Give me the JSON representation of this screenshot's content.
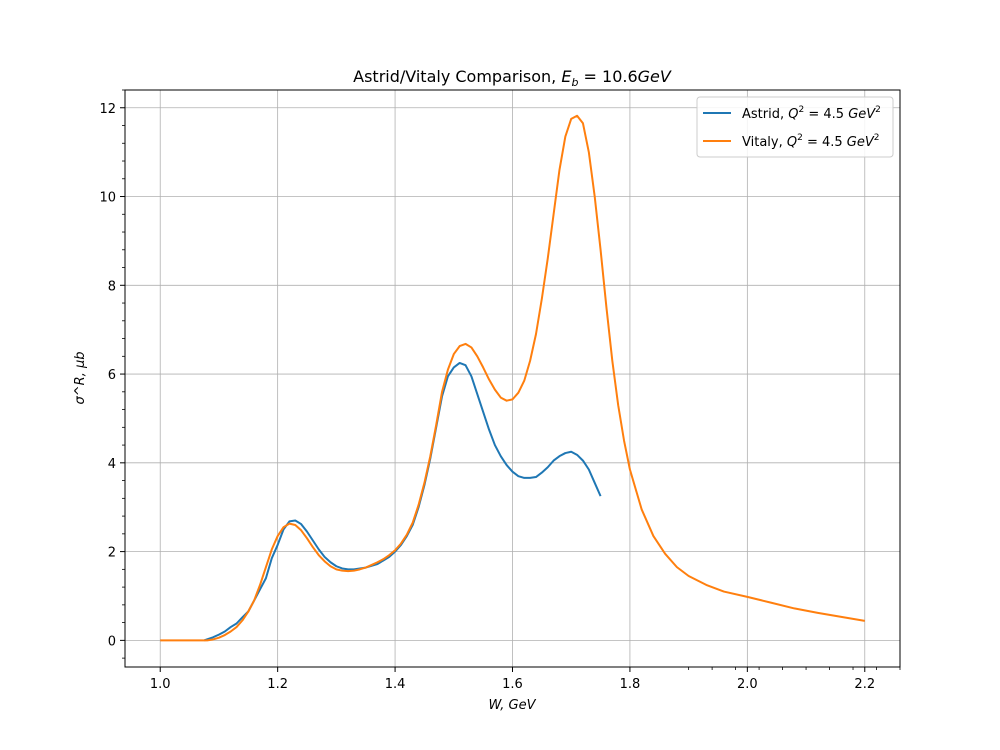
{
  "chart_data": {
    "type": "line",
    "title": "Astrid/Vitaly Comparison, E_b = 10.6 GeV",
    "title_parts": {
      "prefix": "Astrid/Vitaly Comparison, ",
      "E": "E",
      "b": "b",
      "eq": " = 10.6",
      "unit": "GeV"
    },
    "xlabel": "W, GeV",
    "ylabel": "σ^R, μb",
    "xlim": [
      0.94,
      2.26
    ],
    "ylim": [
      -0.6,
      12.4
    ],
    "x_ticks": [
      1.0,
      1.2,
      1.4,
      1.6,
      1.8,
      2.0,
      2.2
    ],
    "x_tick_labels": [
      "1.0",
      "1.2",
      "1.4",
      "1.6",
      "1.8",
      "2.0",
      "2.2"
    ],
    "y_ticks": [
      0,
      2,
      4,
      6,
      8,
      10,
      12
    ],
    "y_tick_labels": [
      "0",
      "2",
      "4",
      "6",
      "8",
      "10",
      "12"
    ],
    "grid": true,
    "legend_position": "top-right",
    "series": [
      {
        "name": "Astrid, Q² = 4.5 GeV²",
        "legend": {
          "prefix": "Astrid, ",
          "Q": "Q",
          "sup": "2",
          "mid": " = 4.5 ",
          "unit": "GeV",
          "usup": "2"
        },
        "color": "#1f77b4",
        "points": [
          [
            1.075,
            0.0
          ],
          [
            1.09,
            0.07
          ],
          [
            1.1,
            0.13
          ],
          [
            1.11,
            0.2
          ],
          [
            1.12,
            0.3
          ],
          [
            1.13,
            0.38
          ],
          [
            1.14,
            0.52
          ],
          [
            1.15,
            0.65
          ],
          [
            1.16,
            0.9
          ],
          [
            1.17,
            1.15
          ],
          [
            1.18,
            1.4
          ],
          [
            1.19,
            1.85
          ],
          [
            1.2,
            2.15
          ],
          [
            1.21,
            2.5
          ],
          [
            1.22,
            2.68
          ],
          [
            1.23,
            2.7
          ],
          [
            1.24,
            2.62
          ],
          [
            1.25,
            2.45
          ],
          [
            1.26,
            2.25
          ],
          [
            1.27,
            2.05
          ],
          [
            1.28,
            1.88
          ],
          [
            1.29,
            1.76
          ],
          [
            1.3,
            1.67
          ],
          [
            1.31,
            1.62
          ],
          [
            1.32,
            1.6
          ],
          [
            1.33,
            1.6
          ],
          [
            1.34,
            1.62
          ],
          [
            1.35,
            1.64
          ],
          [
            1.36,
            1.68
          ],
          [
            1.37,
            1.72
          ],
          [
            1.38,
            1.8
          ],
          [
            1.39,
            1.88
          ],
          [
            1.4,
            2.0
          ],
          [
            1.41,
            2.15
          ],
          [
            1.42,
            2.35
          ],
          [
            1.43,
            2.6
          ],
          [
            1.44,
            3.0
          ],
          [
            1.45,
            3.5
          ],
          [
            1.46,
            4.1
          ],
          [
            1.47,
            4.8
          ],
          [
            1.48,
            5.5
          ],
          [
            1.49,
            5.95
          ],
          [
            1.5,
            6.15
          ],
          [
            1.51,
            6.25
          ],
          [
            1.52,
            6.2
          ],
          [
            1.53,
            5.95
          ],
          [
            1.54,
            5.55
          ],
          [
            1.55,
            5.15
          ],
          [
            1.56,
            4.75
          ],
          [
            1.57,
            4.4
          ],
          [
            1.58,
            4.15
          ],
          [
            1.59,
            3.95
          ],
          [
            1.6,
            3.8
          ],
          [
            1.61,
            3.7
          ],
          [
            1.62,
            3.66
          ],
          [
            1.63,
            3.66
          ],
          [
            1.64,
            3.68
          ],
          [
            1.65,
            3.78
          ],
          [
            1.66,
            3.9
          ],
          [
            1.67,
            4.05
          ],
          [
            1.68,
            4.15
          ],
          [
            1.69,
            4.22
          ],
          [
            1.7,
            4.25
          ],
          [
            1.71,
            4.18
          ],
          [
            1.72,
            4.05
          ],
          [
            1.73,
            3.85
          ],
          [
            1.74,
            3.55
          ],
          [
            1.75,
            3.25
          ]
        ]
      },
      {
        "name": "Vitaly, Q² = 4.5 GeV²",
        "legend": {
          "prefix": "Vitaly, ",
          "Q": "Q",
          "sup": "2",
          "mid": " = 4.5 ",
          "unit": "GeV",
          "usup": "2"
        },
        "color": "#ff7f0e",
        "points": [
          [
            1.0,
            0.0
          ],
          [
            1.02,
            0.0
          ],
          [
            1.04,
            0.0
          ],
          [
            1.06,
            0.0
          ],
          [
            1.08,
            0.0
          ],
          [
            1.09,
            0.02
          ],
          [
            1.1,
            0.06
          ],
          [
            1.11,
            0.12
          ],
          [
            1.12,
            0.2
          ],
          [
            1.13,
            0.3
          ],
          [
            1.14,
            0.45
          ],
          [
            1.15,
            0.65
          ],
          [
            1.16,
            0.9
          ],
          [
            1.17,
            1.25
          ],
          [
            1.18,
            1.65
          ],
          [
            1.19,
            2.05
          ],
          [
            1.2,
            2.35
          ],
          [
            1.21,
            2.55
          ],
          [
            1.22,
            2.63
          ],
          [
            1.23,
            2.6
          ],
          [
            1.24,
            2.48
          ],
          [
            1.25,
            2.3
          ],
          [
            1.26,
            2.1
          ],
          [
            1.27,
            1.92
          ],
          [
            1.28,
            1.78
          ],
          [
            1.29,
            1.67
          ],
          [
            1.3,
            1.6
          ],
          [
            1.31,
            1.57
          ],
          [
            1.32,
            1.56
          ],
          [
            1.33,
            1.57
          ],
          [
            1.34,
            1.6
          ],
          [
            1.35,
            1.64
          ],
          [
            1.36,
            1.7
          ],
          [
            1.37,
            1.76
          ],
          [
            1.38,
            1.83
          ],
          [
            1.39,
            1.92
          ],
          [
            1.4,
            2.03
          ],
          [
            1.41,
            2.18
          ],
          [
            1.42,
            2.38
          ],
          [
            1.43,
            2.65
          ],
          [
            1.44,
            3.05
          ],
          [
            1.45,
            3.55
          ],
          [
            1.46,
            4.15
          ],
          [
            1.47,
            4.85
          ],
          [
            1.48,
            5.6
          ],
          [
            1.49,
            6.1
          ],
          [
            1.5,
            6.45
          ],
          [
            1.51,
            6.63
          ],
          [
            1.52,
            6.68
          ],
          [
            1.53,
            6.6
          ],
          [
            1.54,
            6.4
          ],
          [
            1.55,
            6.15
          ],
          [
            1.56,
            5.88
          ],
          [
            1.57,
            5.65
          ],
          [
            1.58,
            5.47
          ],
          [
            1.59,
            5.4
          ],
          [
            1.6,
            5.43
          ],
          [
            1.61,
            5.58
          ],
          [
            1.62,
            5.85
          ],
          [
            1.63,
            6.3
          ],
          [
            1.64,
            6.9
          ],
          [
            1.65,
            7.7
          ],
          [
            1.66,
            8.6
          ],
          [
            1.67,
            9.6
          ],
          [
            1.68,
            10.6
          ],
          [
            1.69,
            11.35
          ],
          [
            1.7,
            11.75
          ],
          [
            1.71,
            11.82
          ],
          [
            1.72,
            11.65
          ],
          [
            1.73,
            11.0
          ],
          [
            1.74,
            10.0
          ],
          [
            1.75,
            8.8
          ],
          [
            1.76,
            7.5
          ],
          [
            1.77,
            6.3
          ],
          [
            1.78,
            5.3
          ],
          [
            1.79,
            4.5
          ],
          [
            1.8,
            3.85
          ],
          [
            1.82,
            2.95
          ],
          [
            1.84,
            2.35
          ],
          [
            1.86,
            1.95
          ],
          [
            1.88,
            1.65
          ],
          [
            1.9,
            1.45
          ],
          [
            1.93,
            1.25
          ],
          [
            1.96,
            1.1
          ],
          [
            2.0,
            0.98
          ],
          [
            2.04,
            0.85
          ],
          [
            2.08,
            0.72
          ],
          [
            2.12,
            0.62
          ],
          [
            2.16,
            0.53
          ],
          [
            2.2,
            0.44
          ]
        ]
      }
    ]
  }
}
